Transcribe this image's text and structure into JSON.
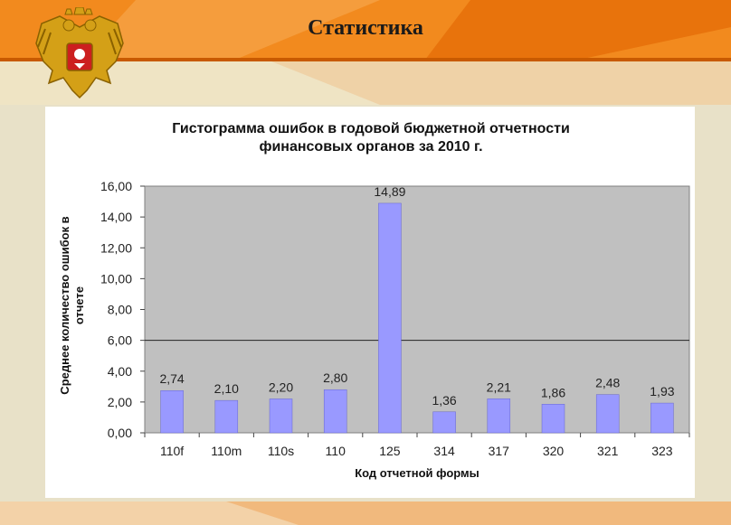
{
  "slide": {
    "title": "Статистика"
  },
  "colors": {
    "orange": "#f07c10",
    "cream": "#e8e1c8",
    "plot_bg": "#c0c0c0",
    "bar": "#9999ff",
    "gold": "#d4a017"
  },
  "icons": {
    "emblem": "russian-coat-of-arms-icon"
  },
  "chart_data": {
    "type": "bar",
    "title_lines": [
      "Гистограмма ошибок в годовой бюджетной отчетности",
      "финансовых органов за 2010 г."
    ],
    "xlabel": "Код отчетной формы",
    "ylabel_lines": [
      "Среднее количество ошибок в",
      "отчете"
    ],
    "categories": [
      "110f",
      "110m",
      "110s",
      "110",
      "125",
      "314",
      "317",
      "320",
      "321",
      "323"
    ],
    "values": [
      2.74,
      2.1,
      2.2,
      2.8,
      14.89,
      1.36,
      2.21,
      1.86,
      2.48,
      1.93
    ],
    "value_labels": [
      "2,74",
      "2,10",
      "2,20",
      "2,80",
      "14,89",
      "1,36",
      "2,21",
      "1,86",
      "2,48",
      "1,93"
    ],
    "ylim": [
      0,
      16
    ],
    "yticks": [
      "0,00",
      "2,00",
      "4,00",
      "6,00",
      "8,00",
      "10,00",
      "12,00",
      "14,00",
      "16,00"
    ],
    "reference_line": 6,
    "grid": false,
    "legend": "none"
  }
}
